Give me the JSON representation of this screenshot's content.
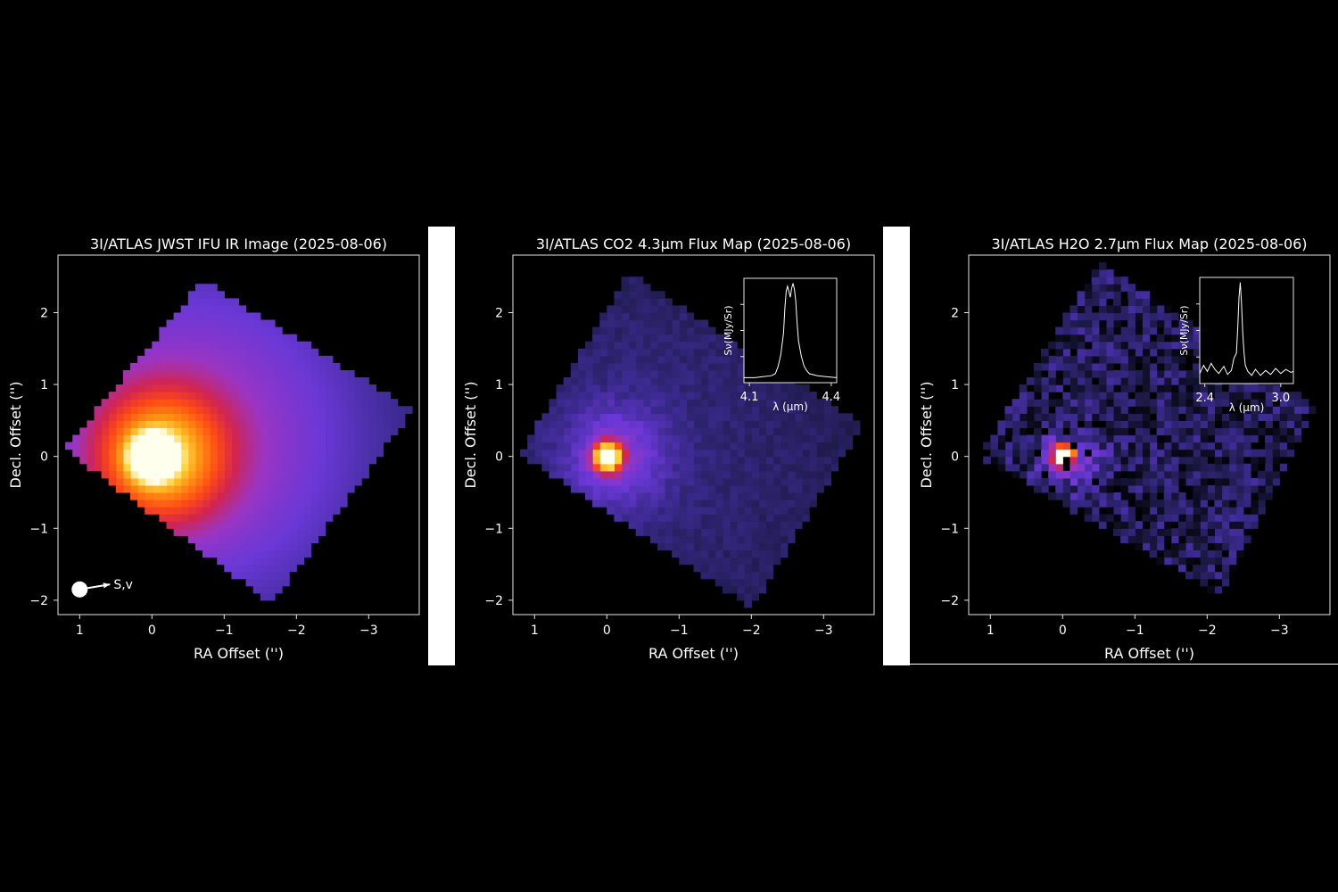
{
  "colors": {
    "background": "#000000",
    "axes": "#e6e6e6",
    "text": "#ffffff",
    "colormap": [
      "#000000",
      "#1e1b4a",
      "#3b2a8f",
      "#6a38d6",
      "#9a35c4",
      "#d2244f",
      "#ff4a16",
      "#ff8c12",
      "#ffd23a",
      "#ffffee"
    ]
  },
  "chart_data": [
    {
      "type": "heatmap",
      "title": "3I/ATLAS JWST IFU IR Image (2025-08-06)",
      "xlabel": "RA Offset ('')",
      "ylabel": "Decl. Offset ('')",
      "xlim": [
        1.3,
        -3.7
      ],
      "ylim": [
        -2.2,
        2.8
      ],
      "xticks": [
        {
          "v": 1,
          "t": "1"
        },
        {
          "v": 0,
          "t": "0"
        },
        {
          "v": -1,
          "t": "−1"
        },
        {
          "v": -2,
          "t": "−2"
        },
        {
          "v": -3,
          "t": "−3"
        }
      ],
      "yticks": [
        {
          "v": -2,
          "t": "−2"
        },
        {
          "v": -1,
          "t": "−1"
        },
        {
          "v": 0,
          "t": "0"
        },
        {
          "v": 1,
          "t": "1"
        },
        {
          "v": 2,
          "t": "2"
        }
      ],
      "footprint_corners": [
        [
          1.2,
          0.1
        ],
        [
          -0.7,
          2.45
        ],
        [
          -3.6,
          0.65
        ],
        [
          -1.65,
          -2.05
        ]
      ],
      "peak": {
        "ra": 0.0,
        "dec": 0.0
      },
      "components": [
        {
          "ra": 0.0,
          "dec": 0.0,
          "amplitude": 1.0,
          "sigma": 0.18
        },
        {
          "ra": -0.1,
          "dec": 0.0,
          "amplitude": 0.48,
          "sigma": 0.62
        },
        {
          "ra": -0.5,
          "dec": 0.25,
          "amplitude": 0.33,
          "sigma": 1.8
        }
      ],
      "floor": 0.14,
      "pixel_scale": 0.1,
      "noise": 0.0,
      "annotation": {
        "label": "S,v",
        "marker_ra": 1.0,
        "marker_dec": -1.85,
        "arrow_to_ra": 0.58,
        "arrow_to_dec": -1.78
      }
    },
    {
      "type": "heatmap",
      "title": "3I/ATLAS CO2 4.3µm Flux Map (2025-08-06)",
      "xlabel": "RA Offset ('')",
      "ylabel": "Decl. Offset ('')",
      "xlim": [
        1.3,
        -3.7
      ],
      "ylim": [
        -2.2,
        2.8
      ],
      "xticks": [
        {
          "v": 1,
          "t": "1"
        },
        {
          "v": 0,
          "t": "0"
        },
        {
          "v": -1,
          "t": "−1"
        },
        {
          "v": -2,
          "t": "−2"
        },
        {
          "v": -3,
          "t": "−3"
        }
      ],
      "yticks": [
        {
          "v": -2,
          "t": "−2"
        },
        {
          "v": -1,
          "t": "−1"
        },
        {
          "v": 0,
          "t": "0"
        },
        {
          "v": 1,
          "t": "1"
        },
        {
          "v": 2,
          "t": "2"
        }
      ],
      "footprint_corners": [
        [
          1.2,
          0.05
        ],
        [
          -0.3,
          2.55
        ],
        [
          -3.55,
          0.45
        ],
        [
          -2.0,
          -2.1
        ]
      ],
      "peak": {
        "ra": 0.0,
        "dec": 0.0
      },
      "components": [
        {
          "ra": 0.0,
          "dec": 0.0,
          "amplitude": 1.0,
          "sigma": 0.13
        },
        {
          "ra": -0.1,
          "dec": 0.0,
          "amplitude": 0.22,
          "sigma": 0.5
        },
        {
          "ra": -0.4,
          "dec": 0.1,
          "amplitude": 0.09,
          "sigma": 2.2
        }
      ],
      "floor": 0.1,
      "pixel_scale": 0.1,
      "noise": 0.03,
      "inset": {
        "xlabel": "λ (µm)",
        "ylabel": "Sν(MJy/Sr)",
        "xlim": [
          4.08,
          4.42
        ],
        "ylim": [
          0,
          1.05
        ],
        "xticks": [
          {
            "v": 4.1,
            "t": "4.1"
          },
          {
            "v": 4.4,
            "t": "4.4"
          }
        ],
        "spectrum": {
          "x": [
            4.08,
            4.12,
            4.15,
            4.18,
            4.195,
            4.205,
            4.215,
            4.225,
            4.23,
            4.235,
            4.24,
            4.25,
            4.255,
            4.26,
            4.265,
            4.27,
            4.275,
            4.28,
            4.29,
            4.3,
            4.31,
            4.32,
            4.35,
            4.38,
            4.42
          ],
          "y": [
            0.05,
            0.05,
            0.06,
            0.07,
            0.09,
            0.16,
            0.28,
            0.5,
            0.75,
            0.92,
            0.97,
            0.86,
            0.95,
            1.0,
            0.94,
            0.82,
            0.6,
            0.42,
            0.27,
            0.17,
            0.12,
            0.09,
            0.07,
            0.06,
            0.05
          ]
        }
      }
    },
    {
      "type": "heatmap",
      "title": "3I/ATLAS H2O 2.7µm Flux Map (2025-08-06)",
      "xlabel": "RA Offset ('')",
      "ylabel": "Decl. Offset ('')",
      "xlim": [
        1.3,
        -3.7
      ],
      "ylim": [
        -2.2,
        2.8
      ],
      "xticks": [
        {
          "v": 1,
          "t": "1"
        },
        {
          "v": 0,
          "t": "0"
        },
        {
          "v": -1,
          "t": "−1"
        },
        {
          "v": -2,
          "t": "−2"
        },
        {
          "v": -3,
          "t": "−3"
        }
      ],
      "yticks": [
        {
          "v": -2,
          "t": "−2"
        },
        {
          "v": -1,
          "t": "−1"
        },
        {
          "v": 0,
          "t": "0"
        },
        {
          "v": 1,
          "t": "1"
        },
        {
          "v": 2,
          "t": "2"
        }
      ],
      "footprint_corners": [
        [
          1.15,
          0.0
        ],
        [
          -0.5,
          2.7
        ],
        [
          -3.5,
          0.7
        ],
        [
          -2.2,
          -1.95
        ]
      ],
      "peak": {
        "ra": 0.0,
        "dec": 0.0
      },
      "components": [
        {
          "ra": 0.0,
          "dec": 0.0,
          "amplitude": 1.0,
          "sigma": 0.1
        },
        {
          "ra": -0.1,
          "dec": 0.0,
          "amplitude": 0.25,
          "sigma": 0.3
        }
      ],
      "floor": 0.13,
      "pixel_scale": 0.1,
      "noise": 0.12,
      "inset": {
        "xlabel": "λ (µm)",
        "ylabel": "Sν(MJy/Sr)",
        "xlim": [
          2.36,
          3.1
        ],
        "ylim": [
          0,
          1.05
        ],
        "xticks": [
          {
            "v": 2.4,
            "t": "2.4"
          },
          {
            "v": 3.0,
            "t": "3.0"
          }
        ],
        "spectrum": {
          "x": [
            2.36,
            2.39,
            2.42,
            2.45,
            2.48,
            2.51,
            2.55,
            2.58,
            2.61,
            2.63,
            2.65,
            2.66,
            2.67,
            2.68,
            2.69,
            2.7,
            2.71,
            2.72,
            2.74,
            2.77,
            2.8,
            2.84,
            2.88,
            2.92,
            2.96,
            3.0,
            3.04,
            3.08,
            3.1
          ],
          "y": [
            0.1,
            0.18,
            0.12,
            0.2,
            0.14,
            0.1,
            0.17,
            0.09,
            0.13,
            0.25,
            0.3,
            0.55,
            0.85,
            1.0,
            0.8,
            0.5,
            0.3,
            0.18,
            0.12,
            0.08,
            0.14,
            0.08,
            0.13,
            0.09,
            0.15,
            0.1,
            0.14,
            0.11,
            0.12
          ]
        }
      }
    }
  ]
}
